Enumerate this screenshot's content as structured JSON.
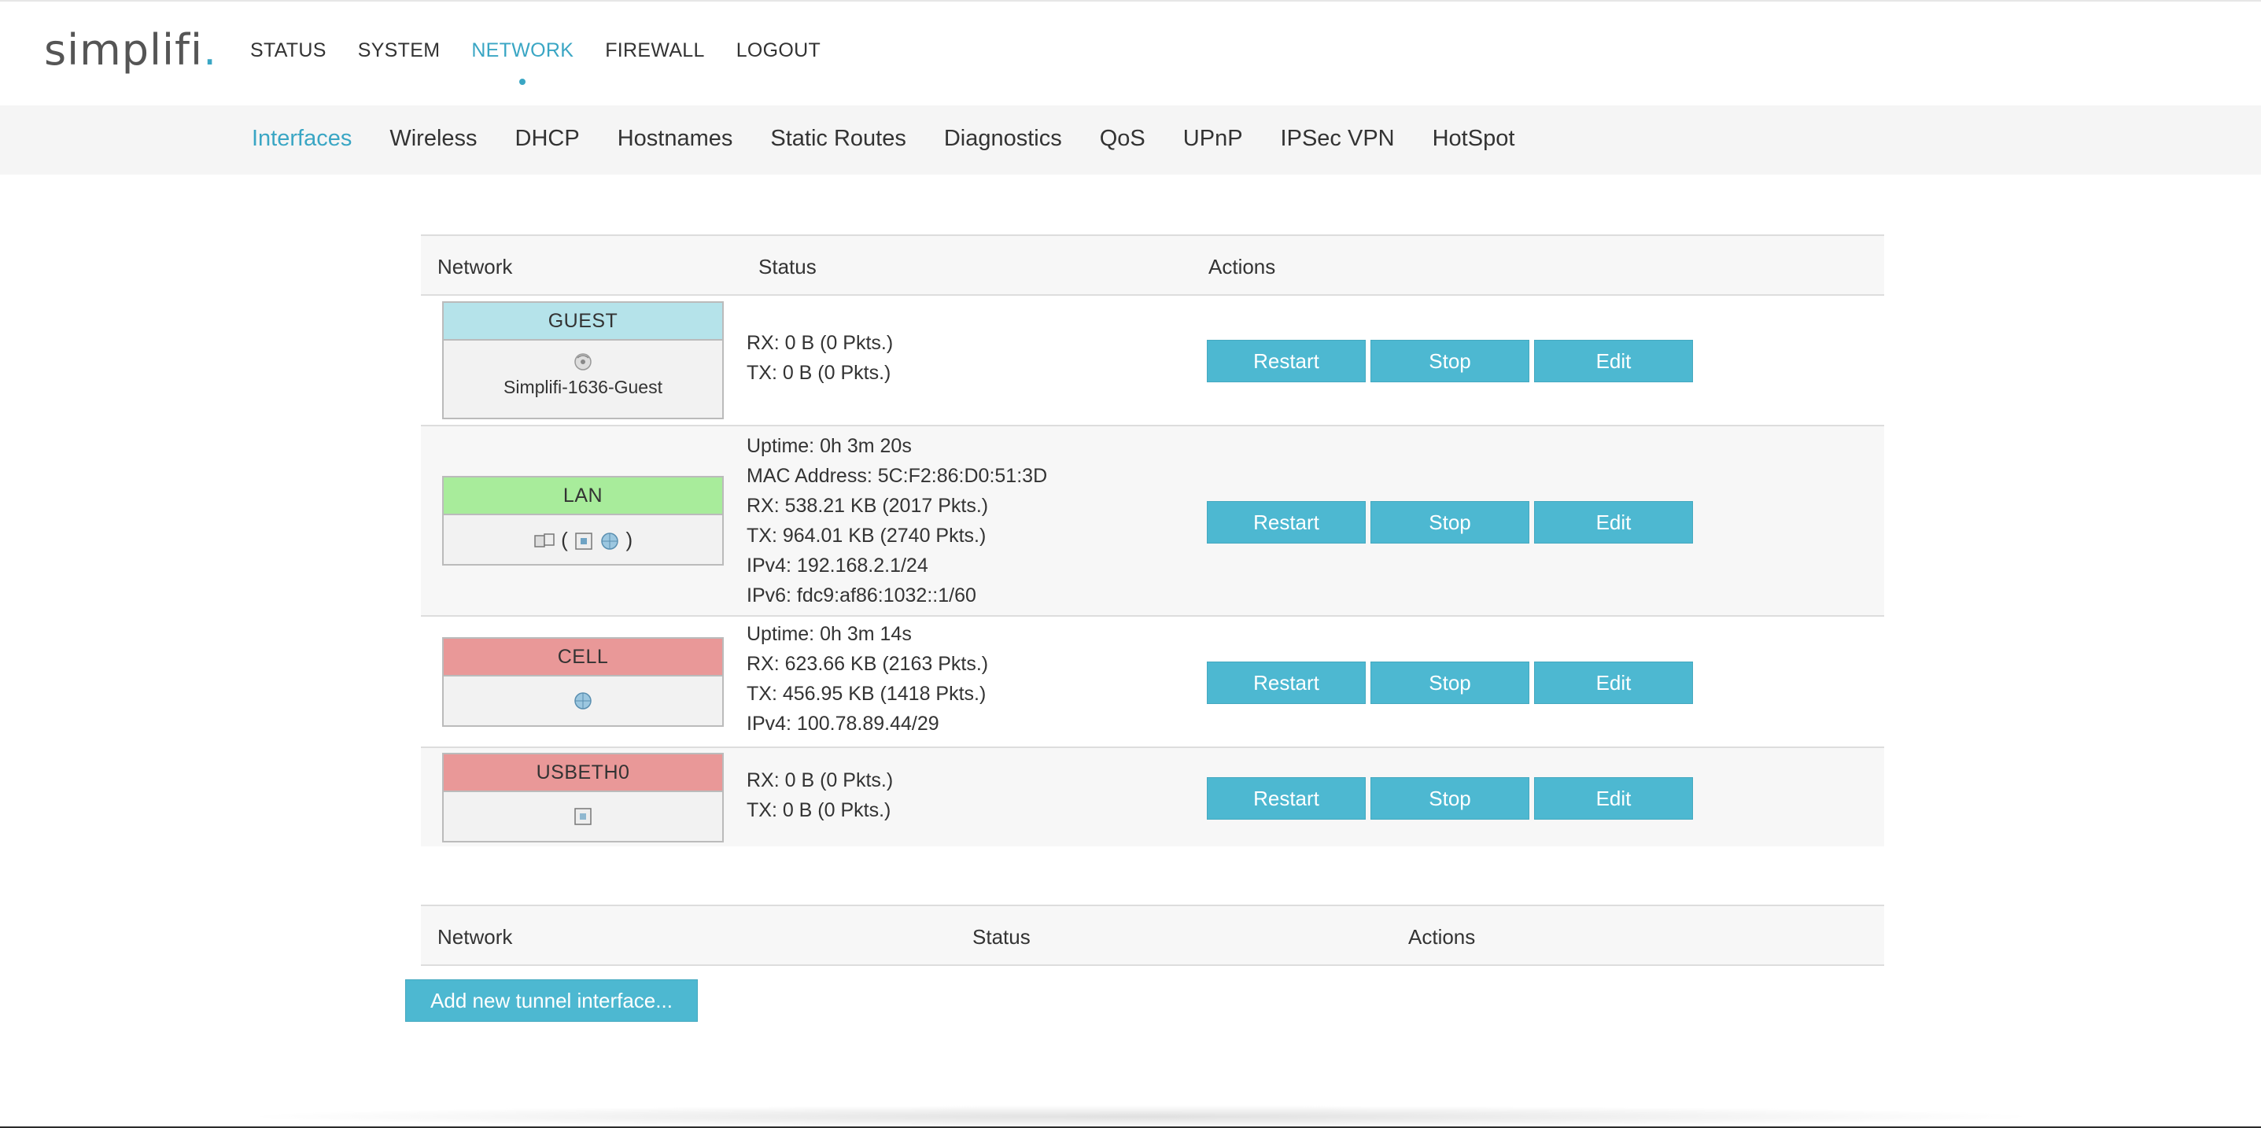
{
  "logo": {
    "text": "simplifi",
    "dot": "."
  },
  "main_nav": [
    {
      "label": "STATUS"
    },
    {
      "label": "SYSTEM"
    },
    {
      "label": "NETWORK",
      "active": true
    },
    {
      "label": "FIREWALL"
    },
    {
      "label": "LOGOUT"
    }
  ],
  "sub_nav": [
    {
      "label": "Interfaces",
      "active": true
    },
    {
      "label": "Wireless"
    },
    {
      "label": "DHCP"
    },
    {
      "label": "Hostnames"
    },
    {
      "label": "Static Routes"
    },
    {
      "label": "Diagnostics"
    },
    {
      "label": "QoS"
    },
    {
      "label": "UPnP"
    },
    {
      "label": "IPSec VPN"
    },
    {
      "label": "HotSpot"
    }
  ],
  "interfaces_table": {
    "headers": {
      "network": "Network",
      "status": "Status",
      "actions": "Actions"
    },
    "rows": [
      {
        "name": "GUEST",
        "color": "#b5e3ea",
        "subtitle": "Simplifi-1636-Guest",
        "icons": [
          "wireless-icon"
        ],
        "status": [
          "RX: 0 B (0 Pkts.)",
          "TX: 0 B (0 Pkts.)"
        ]
      },
      {
        "name": "LAN",
        "color": "#a8ec9b",
        "subtitle": "",
        "icons": [
          "switch-icon",
          "ethernet-icon",
          "wifi-globe-icon"
        ],
        "status": [
          "Uptime: 0h 3m 20s",
          "MAC Address: 5C:F2:86:D0:51:3D",
          "RX: 538.21 KB (2017 Pkts.)",
          "TX: 964.01 KB (2740 Pkts.)",
          "IPv4: 192.168.2.1/24",
          "IPv6: fdc9:af86:1032::1/60"
        ]
      },
      {
        "name": "CELL",
        "color": "#e99898",
        "subtitle": "",
        "icons": [
          "cell-globe-icon"
        ],
        "status": [
          "Uptime: 0h 3m 14s",
          "RX: 623.66 KB (2163 Pkts.)",
          "TX: 456.95 KB (1418 Pkts.)",
          "IPv4: 100.78.89.44/29"
        ]
      },
      {
        "name": "USBETH0",
        "color": "#e99898",
        "subtitle": "",
        "icons": [
          "ethernet-icon"
        ],
        "status": [
          "RX: 0 B (0 Pkts.)",
          "TX: 0 B (0 Pkts.)"
        ]
      }
    ],
    "actions": {
      "restart": "Restart",
      "stop": "Stop",
      "edit": "Edit"
    }
  },
  "tunnel_table": {
    "headers": {
      "network": "Network",
      "status": "Status",
      "actions": "Actions"
    },
    "add_button": "Add new tunnel interface..."
  },
  "colors": {
    "accent": "#3aa6c4",
    "button": "#4db8d1"
  }
}
